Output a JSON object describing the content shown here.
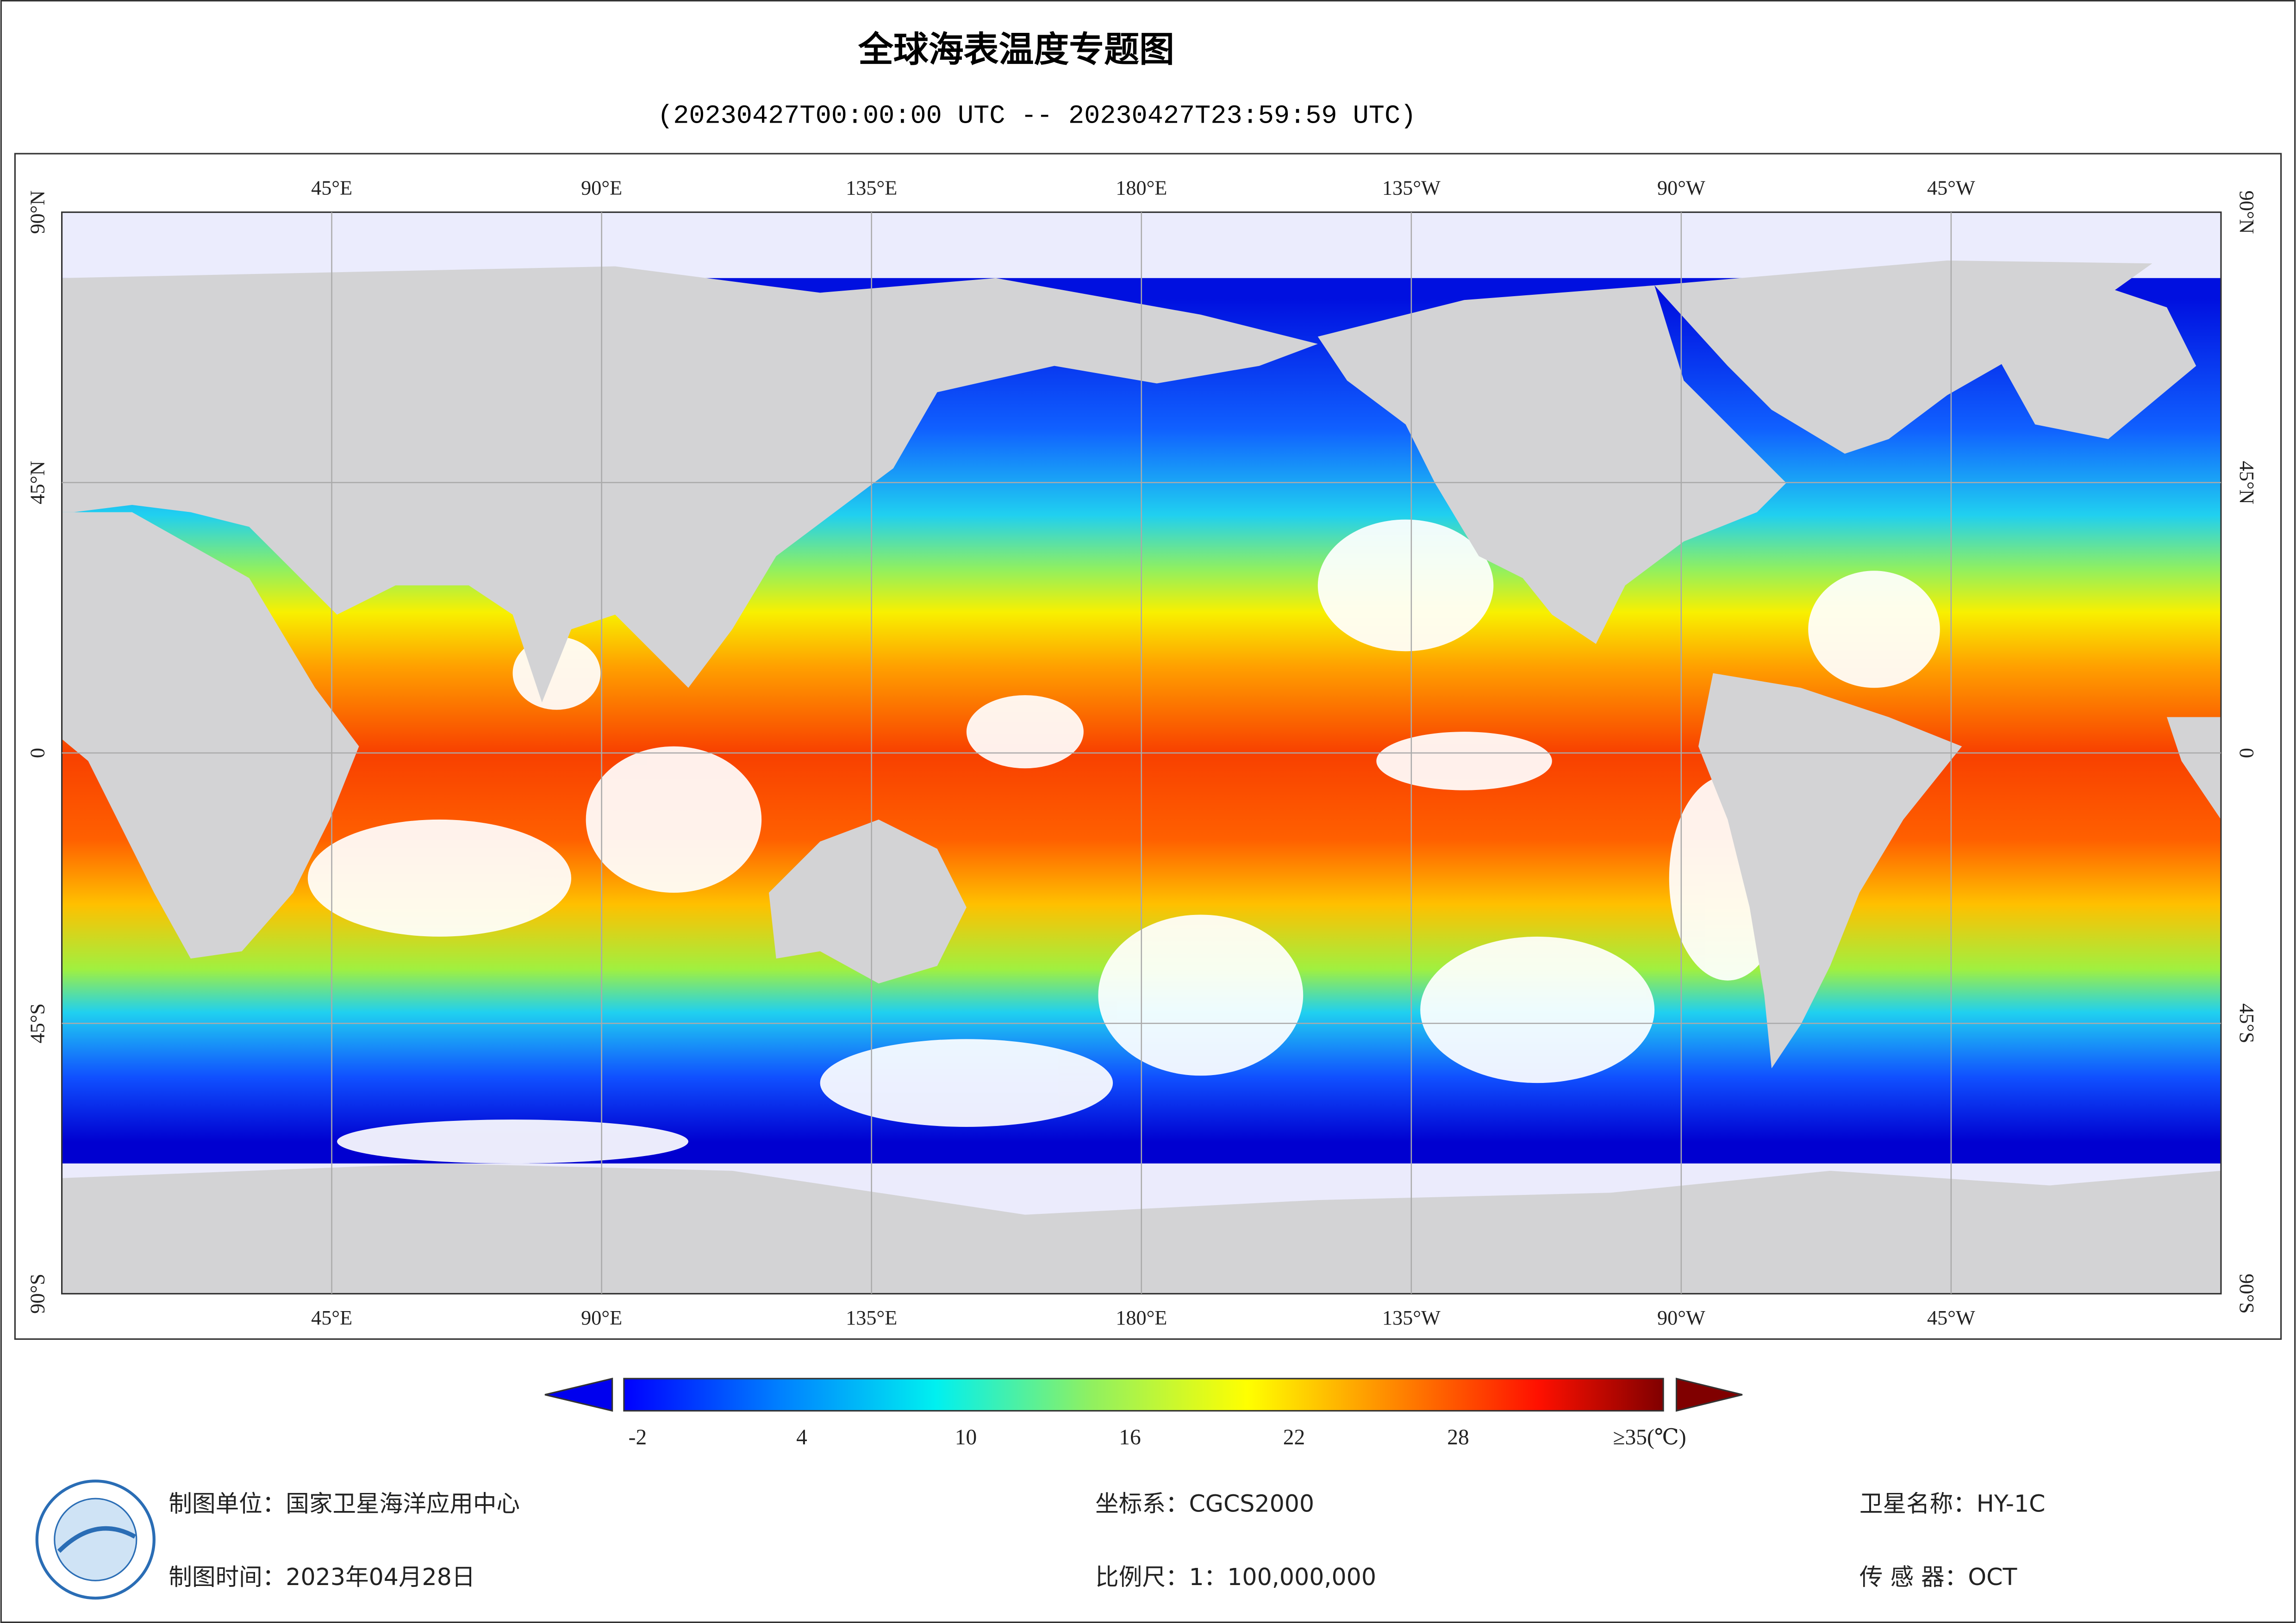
{
  "title": "全球海表温度专题图",
  "subtitle": "(20230427T00:00:00 UTC -- 20230427T23:59:59 UTC)",
  "map": {
    "xlim": [
      0,
      360
    ],
    "ylim": [
      -90,
      90
    ],
    "lon_ticks": [
      {
        "value": 45,
        "label": "45°E"
      },
      {
        "value": 90,
        "label": "90°E"
      },
      {
        "value": 135,
        "label": "135°E"
      },
      {
        "value": 180,
        "label": "180°E"
      },
      {
        "value": 225,
        "label": "135°W"
      },
      {
        "value": 270,
        "label": "90°W"
      },
      {
        "value": 315,
        "label": "45°W"
      }
    ],
    "lat_ticks": [
      {
        "value": 90,
        "label": "90°N"
      },
      {
        "value": 45,
        "label": "45°N"
      },
      0,
      {
        "value": -45,
        "label": "45°S"
      },
      {
        "value": -90,
        "label": "90°S"
      }
    ]
  },
  "colorbar": {
    "range": [
      -2.5,
      35.5
    ],
    "ticks": [
      -2,
      4,
      10,
      16,
      22,
      28,
      {
        "value": 35,
        "label": "≥35(℃)"
      }
    ]
  },
  "footer": {
    "agency": "制图单位：国家卫星海洋应用中心",
    "date": "制图时间：2023年04月28日",
    "crs": "坐标系：CGCS2000",
    "scale": "比例尺：1：100,000,000",
    "satellite": "卫星名称：HY-1C",
    "sensor": "传 感 器：OCT"
  }
}
